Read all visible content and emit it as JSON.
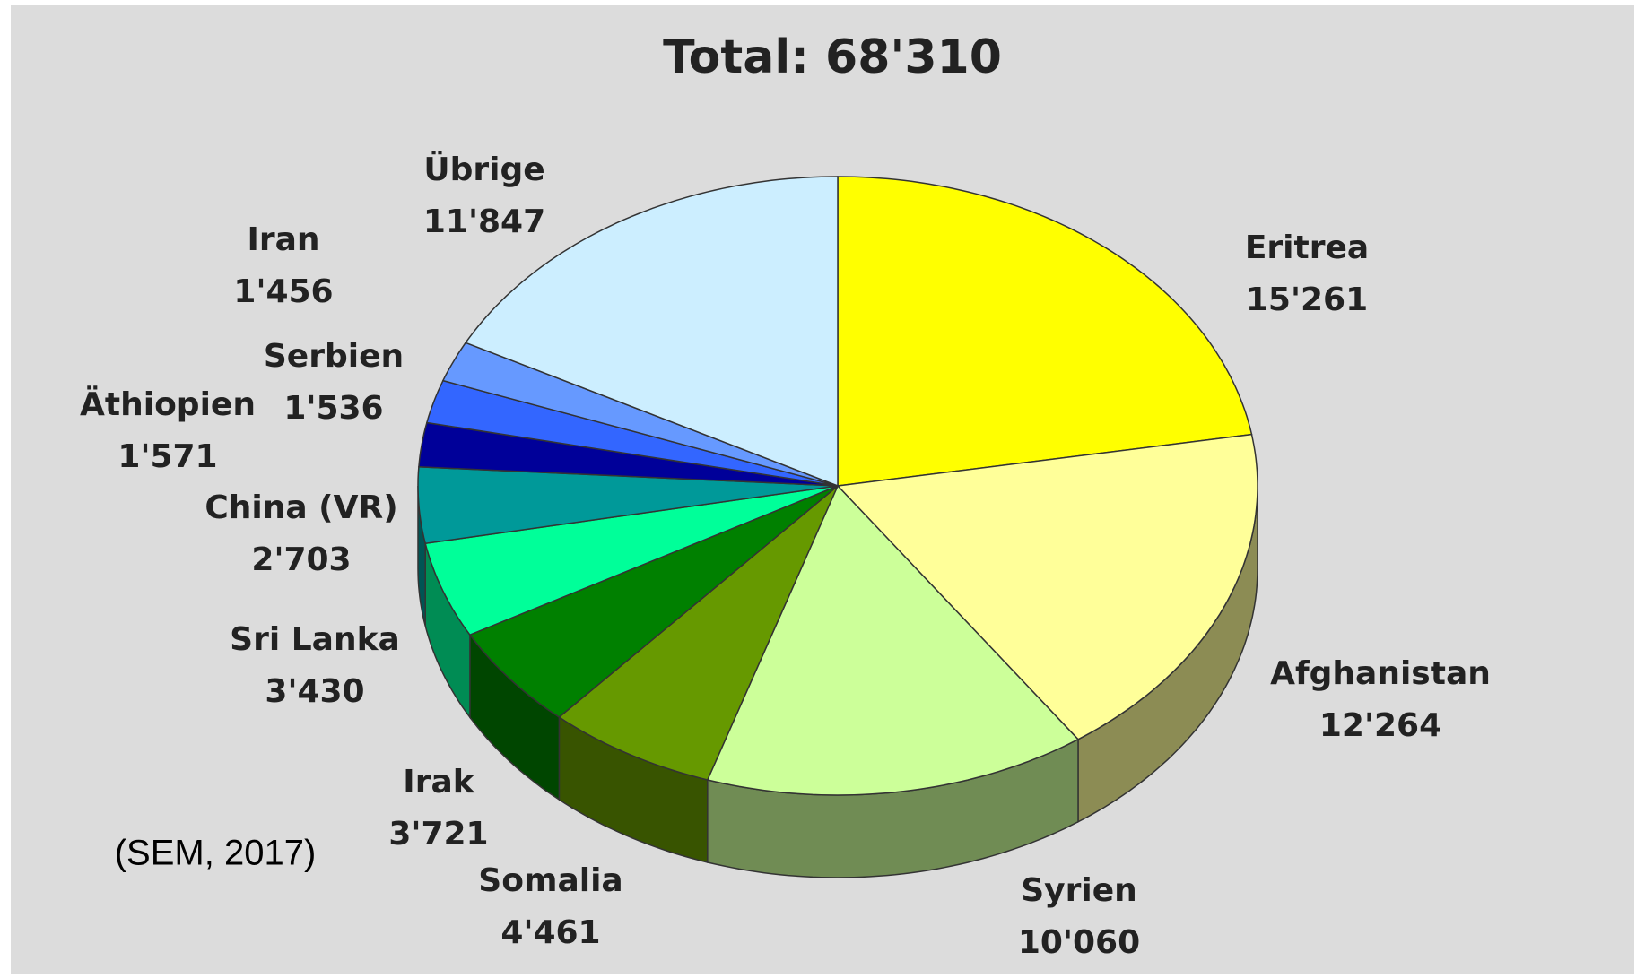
{
  "chart_data": {
    "type": "pie3d",
    "title": "Total: 68'310",
    "source": "(SEM, 2017)",
    "categories": [
      "Eritrea",
      "Afghanistan",
      "Syrien",
      "Somalia",
      "Irak",
      "Sri Lanka",
      "China (VR)",
      "Äthiopien",
      "Serbien",
      "Iran",
      "Übrige"
    ],
    "values": [
      15261,
      12264,
      10060,
      4461,
      3721,
      3430,
      2703,
      1571,
      1536,
      1456,
      11847
    ],
    "value_labels": [
      "15'261",
      "12'264",
      "10'060",
      "4'461",
      "3'721",
      "3'430",
      "2'703",
      "1'571",
      "1'536",
      "1'456",
      "11'847"
    ],
    "colors": [
      "#ffff00",
      "#ffff99",
      "#ccff99",
      "#669900",
      "#008000",
      "#00ff99",
      "#009999",
      "#000099",
      "#3366ff",
      "#6699ff",
      "#cceeff"
    ]
  }
}
